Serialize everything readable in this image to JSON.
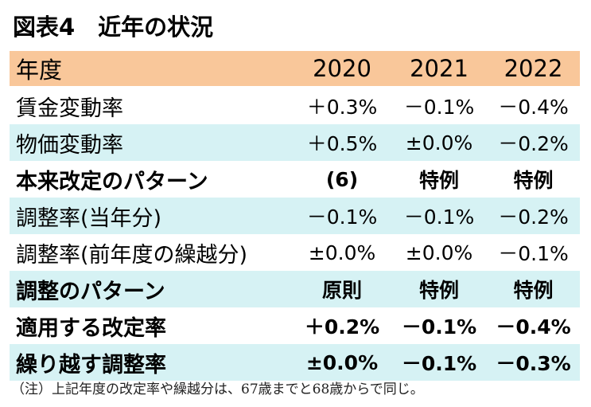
{
  "title": "図表4　近年の状況",
  "table": {
    "header": {
      "label": "年度",
      "values": [
        "2020",
        "2021",
        "2022"
      ]
    },
    "rows": [
      {
        "label": "賃金変動率",
        "values": [
          "＋0.3%",
          "－0.1%",
          "－0.4%"
        ]
      },
      {
        "label": "物価変動率",
        "values": [
          "＋0.5%",
          "±0.0%",
          "－0.2%"
        ]
      },
      {
        "label": "本来改定のパターン",
        "values": [
          "(6)",
          "特例",
          "特例"
        ]
      },
      {
        "label": "調整率(当年分)",
        "values": [
          "－0.1%",
          "－0.1%",
          "－0.2%"
        ]
      },
      {
        "label": "調整率(前年度の繰越分)",
        "values": [
          "±0.0%",
          "±0.0%",
          "－0.1%"
        ]
      },
      {
        "label": "調整のパターン",
        "values": [
          "原則",
          "特例",
          "特例"
        ]
      },
      {
        "label": "適用する改定率",
        "values": [
          "＋0.2%",
          "－0.1%",
          "－0.4%"
        ]
      },
      {
        "label": "繰り越す調整率",
        "values": [
          "±0.0%",
          "－0.1%",
          "－0.3%"
        ]
      }
    ]
  },
  "note": "（注）上記年度の改定率や繰越分は、67歳までと68歳からで同じ。",
  "colors": {
    "header_bg": "#f9c79a",
    "band_bg": "#d6f2f4"
  }
}
